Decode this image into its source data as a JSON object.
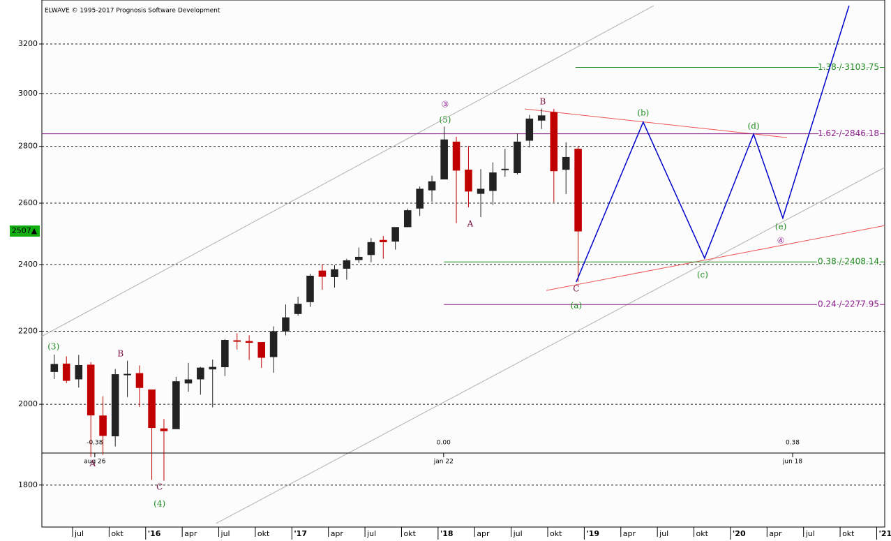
{
  "chart_data": {
    "type": "candlestick",
    "title": "ELWAVE © 1995-2017 Prognosis Software Development",
    "xlim": [
      2015.29,
      2021.055
    ],
    "ylim": [
      1704,
      3389
    ],
    "log_scale": true,
    "grid": true,
    "xticks": [
      {
        "value": 2015.5,
        "label": "jul"
      },
      {
        "value": 2015.75,
        "label": "okt"
      },
      {
        "value": 2016,
        "label": "'16"
      },
      {
        "value": 2016.25,
        "label": "apr"
      },
      {
        "value": 2016.5,
        "label": "jul"
      },
      {
        "value": 2016.75,
        "label": "okt"
      },
      {
        "value": 2017,
        "label": "'17"
      },
      {
        "value": 2017.25,
        "label": "apr"
      },
      {
        "value": 2017.5,
        "label": "jul"
      },
      {
        "value": 2017.75,
        "label": "okt"
      },
      {
        "value": 2018,
        "label": "'18"
      },
      {
        "value": 2018.25,
        "label": "apr"
      },
      {
        "value": 2018.5,
        "label": "jul"
      },
      {
        "value": 2018.75,
        "label": "okt"
      },
      {
        "value": 2019,
        "label": "'19"
      },
      {
        "value": 2019.25,
        "label": "apr"
      },
      {
        "value": 2019.5,
        "label": "jul"
      },
      {
        "value": 2019.75,
        "label": "okt"
      },
      {
        "value": 2020,
        "label": "'20"
      },
      {
        "value": 2020.25,
        "label": "apr"
      },
      {
        "value": 2020.5,
        "label": "jul"
      },
      {
        "value": 2020.75,
        "label": "okt"
      },
      {
        "value": 2021,
        "label": "'21"
      }
    ],
    "yticks": [
      1800,
      2000,
      2200,
      2400,
      2600,
      2800,
      3000,
      3200
    ],
    "up_color": "#222222",
    "down_color": "#c00000",
    "x": [
      2015.375,
      2015.458,
      2015.542,
      2015.625,
      2015.708,
      2015.792,
      2015.875,
      2015.958,
      2016.042,
      2016.125,
      2016.208,
      2016.292,
      2016.375,
      2016.458,
      2016.542,
      2016.625,
      2016.708,
      2016.792,
      2016.875,
      2016.958,
      2017.042,
      2017.125,
      2017.208,
      2017.292,
      2017.375,
      2017.458,
      2017.542,
      2017.625,
      2017.708,
      2017.792,
      2017.875,
      2017.958,
      2018.042,
      2018.125,
      2018.208,
      2018.292,
      2018.375,
      2018.458,
      2018.542,
      2018.625,
      2018.708,
      2018.792,
      2018.875,
      2018.958
    ],
    "open": [
      2087,
      2108,
      2067,
      2105,
      1970,
      1919,
      2080,
      2082,
      2038,
      1937,
      1937,
      2056,
      2067,
      2094,
      2100,
      2173,
      2171,
      2168,
      2128,
      2200,
      2251,
      2286,
      2380,
      2362,
      2388,
      2415,
      2431,
      2477,
      2474,
      2521,
      2583,
      2645,
      2683,
      2816,
      2715,
      2633,
      2643,
      2718,
      2705,
      2822,
      2897,
      2927,
      2717,
      2790
    ],
    "high": [
      2134,
      2129,
      2133,
      2113,
      2021,
      2094,
      2117,
      2104,
      2038,
      1962,
      2073,
      2111,
      2100,
      2120,
      2178,
      2194,
      2188,
      2169,
      2214,
      2278,
      2301,
      2371,
      2401,
      2398,
      2418,
      2454,
      2484,
      2491,
      2519,
      2582,
      2657,
      2695,
      2873,
      2835,
      2801,
      2718,
      2742,
      2791,
      2848,
      2917,
      2941,
      2940,
      2815,
      2800
    ],
    "low": [
      2067,
      2056,
      2044,
      1867,
      1872,
      1893,
      2019,
      1993,
      1812,
      1810,
      1937,
      2033,
      2025,
      1992,
      2075,
      2148,
      2119,
      2097,
      2084,
      2188,
      2245,
      2271,
      2322,
      2329,
      2353,
      2405,
      2407,
      2418,
      2447,
      2520,
      2557,
      2605,
      2682,
      2533,
      2586,
      2553,
      2594,
      2691,
      2699,
      2796,
      2864,
      2603,
      2631,
      2346
    ],
    "close": [
      2107,
      2063,
      2104,
      1972,
      1920,
      2079,
      2080,
      2044,
      1940,
      1932,
      2060,
      2065,
      2097,
      2099,
      2174,
      2171,
      2168,
      2126,
      2199,
      2239,
      2279,
      2364,
      2363,
      2384,
      2412,
      2423,
      2470,
      2472,
      2519,
      2575,
      2648,
      2674,
      2824,
      2714,
      2641,
      2648,
      2705,
      2718,
      2816,
      2902,
      2914,
      2712,
      2760,
      2507
    ],
    "last_price": {
      "value": 2507,
      "label": "2507▲",
      "color": "#10b010"
    },
    "projection": {
      "color": "#0000cc",
      "x": [
        2018.945,
        2019.403,
        2019.823,
        2020.158,
        2020.358,
        2020.811
      ],
      "y": [
        2346,
        2890,
        2420,
        2845,
        2550,
        3364
      ]
    },
    "trendlines": [
      {
        "color": "#b0b0b0",
        "x": [
          2015.289,
          2019.475
        ],
        "y": [
          2185,
          3364
        ]
      },
      {
        "color": "#b0b0b0",
        "x": [
          2016.482,
          2021.055
        ],
        "y": [
          1712,
          2724
        ]
      },
      {
        "color": "#ee5555",
        "x": [
          2018.592,
          2020.387
        ],
        "y": [
          2940,
          2832
        ]
      },
      {
        "color": "#ee5555",
        "x": [
          2018.74,
          2021.055
        ],
        "y": [
          2320,
          2525
        ]
      }
    ],
    "levels": [
      {
        "label": "1.38 / 3103.75",
        "value": 3103.75,
        "color": "#1e8a1e",
        "from": 2018.94
      },
      {
        "label": "1.62 / 2846.18",
        "value": 2846.18,
        "color": "#8b1a8b"
      },
      {
        "label": "0.38 / 2408.14",
        "value": 2408.14,
        "color": "#1e8a1e",
        "from": 2018.04
      },
      {
        "label": "0.24 / 2277.95",
        "value": 2277.95,
        "color": "#8b1a8b",
        "from": 2018.04
      }
    ],
    "time_markers": [
      {
        "x": 2015.652,
        "label": "aug 26",
        "ratio": "-0.38"
      },
      {
        "x": 2018.038,
        "label": "jan 22",
        "ratio": "0.00"
      },
      {
        "x": 2020.425,
        "label": "jun 18",
        "ratio": "0.38"
      }
    ],
    "wave_labels": [
      {
        "text": "(3)",
        "x": 2015.37,
        "y": 2155,
        "color": "#1e8a1e"
      },
      {
        "text": "B",
        "x": 2015.828,
        "y": 2136,
        "color": "#7a1040"
      },
      {
        "text": "A",
        "x": 2015.637,
        "y": 1850,
        "color": "#7a1040"
      },
      {
        "text": "C",
        "x": 2016.095,
        "y": 1795,
        "color": "#7a1040"
      },
      {
        "text": "(4)",
        "x": 2016.095,
        "y": 1756,
        "color": "#1e8a1e"
      },
      {
        "text": "③",
        "x": 2018.048,
        "y": 2956,
        "color": "#8b1a8b"
      },
      {
        "text": "(5)",
        "x": 2018.048,
        "y": 2898,
        "color": "#1e8a1e"
      },
      {
        "text": "A",
        "x": 2018.22,
        "y": 2530,
        "color": "#7a1040"
      },
      {
        "text": "B",
        "x": 2018.716,
        "y": 2967,
        "color": "#7a1040"
      },
      {
        "text": "C",
        "x": 2018.945,
        "y": 2325,
        "color": "#7a1040"
      },
      {
        "text": "(a)",
        "x": 2018.945,
        "y": 2274,
        "color": "#1e8a1e"
      },
      {
        "text": "(b)",
        "x": 2019.403,
        "y": 2924,
        "color": "#1e8a1e"
      },
      {
        "text": "(c)",
        "x": 2019.809,
        "y": 2367,
        "color": "#1e8a1e"
      },
      {
        "text": "(d)",
        "x": 2020.158,
        "y": 2874,
        "color": "#1e8a1e"
      },
      {
        "text": "(e)",
        "x": 2020.344,
        "y": 2521,
        "color": "#1e8a1e"
      },
      {
        "text": "④",
        "x": 2020.344,
        "y": 2475,
        "color": "#8b1a8b"
      }
    ]
  }
}
